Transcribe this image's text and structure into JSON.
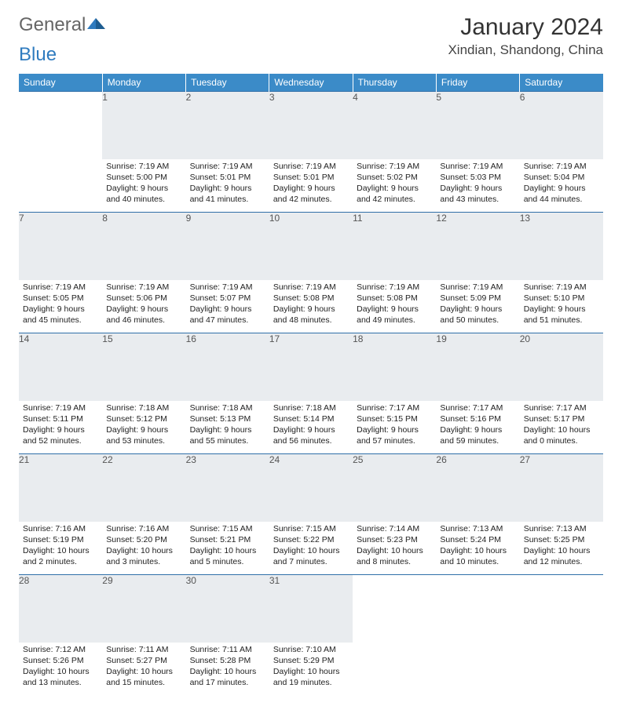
{
  "brand": {
    "part1": "General",
    "part2": "Blue"
  },
  "title": "January 2024",
  "location": "Xindian, Shandong, China",
  "colors": {
    "header_bg": "#3b8bc8",
    "header_fg": "#ffffff",
    "daynum_bg": "#e9ecef",
    "rule": "#2f6fa8",
    "title_fg": "#333333",
    "logo_gray": "#666666",
    "logo_blue": "#2f7bbf",
    "body_fg": "#222222"
  },
  "typography": {
    "title_fontsize": 30,
    "location_fontsize": 17,
    "header_fontsize": 12,
    "cell_fontsize": 10.5
  },
  "day_headers": [
    "Sunday",
    "Monday",
    "Tuesday",
    "Wednesday",
    "Thursday",
    "Friday",
    "Saturday"
  ],
  "weeks": [
    {
      "nums": [
        "",
        "1",
        "2",
        "3",
        "4",
        "5",
        "6"
      ],
      "cells": [
        {
          "empty": true
        },
        {
          "sunrise": "Sunrise: 7:19 AM",
          "sunset": "Sunset: 5:00 PM",
          "day1": "Daylight: 9 hours",
          "day2": "and 40 minutes."
        },
        {
          "sunrise": "Sunrise: 7:19 AM",
          "sunset": "Sunset: 5:01 PM",
          "day1": "Daylight: 9 hours",
          "day2": "and 41 minutes."
        },
        {
          "sunrise": "Sunrise: 7:19 AM",
          "sunset": "Sunset: 5:01 PM",
          "day1": "Daylight: 9 hours",
          "day2": "and 42 minutes."
        },
        {
          "sunrise": "Sunrise: 7:19 AM",
          "sunset": "Sunset: 5:02 PM",
          "day1": "Daylight: 9 hours",
          "day2": "and 42 minutes."
        },
        {
          "sunrise": "Sunrise: 7:19 AM",
          "sunset": "Sunset: 5:03 PM",
          "day1": "Daylight: 9 hours",
          "day2": "and 43 minutes."
        },
        {
          "sunrise": "Sunrise: 7:19 AM",
          "sunset": "Sunset: 5:04 PM",
          "day1": "Daylight: 9 hours",
          "day2": "and 44 minutes."
        }
      ]
    },
    {
      "nums": [
        "7",
        "8",
        "9",
        "10",
        "11",
        "12",
        "13"
      ],
      "cells": [
        {
          "sunrise": "Sunrise: 7:19 AM",
          "sunset": "Sunset: 5:05 PM",
          "day1": "Daylight: 9 hours",
          "day2": "and 45 minutes."
        },
        {
          "sunrise": "Sunrise: 7:19 AM",
          "sunset": "Sunset: 5:06 PM",
          "day1": "Daylight: 9 hours",
          "day2": "and 46 minutes."
        },
        {
          "sunrise": "Sunrise: 7:19 AM",
          "sunset": "Sunset: 5:07 PM",
          "day1": "Daylight: 9 hours",
          "day2": "and 47 minutes."
        },
        {
          "sunrise": "Sunrise: 7:19 AM",
          "sunset": "Sunset: 5:08 PM",
          "day1": "Daylight: 9 hours",
          "day2": "and 48 minutes."
        },
        {
          "sunrise": "Sunrise: 7:19 AM",
          "sunset": "Sunset: 5:08 PM",
          "day1": "Daylight: 9 hours",
          "day2": "and 49 minutes."
        },
        {
          "sunrise": "Sunrise: 7:19 AM",
          "sunset": "Sunset: 5:09 PM",
          "day1": "Daylight: 9 hours",
          "day2": "and 50 minutes."
        },
        {
          "sunrise": "Sunrise: 7:19 AM",
          "sunset": "Sunset: 5:10 PM",
          "day1": "Daylight: 9 hours",
          "day2": "and 51 minutes."
        }
      ]
    },
    {
      "nums": [
        "14",
        "15",
        "16",
        "17",
        "18",
        "19",
        "20"
      ],
      "cells": [
        {
          "sunrise": "Sunrise: 7:19 AM",
          "sunset": "Sunset: 5:11 PM",
          "day1": "Daylight: 9 hours",
          "day2": "and 52 minutes."
        },
        {
          "sunrise": "Sunrise: 7:18 AM",
          "sunset": "Sunset: 5:12 PM",
          "day1": "Daylight: 9 hours",
          "day2": "and 53 minutes."
        },
        {
          "sunrise": "Sunrise: 7:18 AM",
          "sunset": "Sunset: 5:13 PM",
          "day1": "Daylight: 9 hours",
          "day2": "and 55 minutes."
        },
        {
          "sunrise": "Sunrise: 7:18 AM",
          "sunset": "Sunset: 5:14 PM",
          "day1": "Daylight: 9 hours",
          "day2": "and 56 minutes."
        },
        {
          "sunrise": "Sunrise: 7:17 AM",
          "sunset": "Sunset: 5:15 PM",
          "day1": "Daylight: 9 hours",
          "day2": "and 57 minutes."
        },
        {
          "sunrise": "Sunrise: 7:17 AM",
          "sunset": "Sunset: 5:16 PM",
          "day1": "Daylight: 9 hours",
          "day2": "and 59 minutes."
        },
        {
          "sunrise": "Sunrise: 7:17 AM",
          "sunset": "Sunset: 5:17 PM",
          "day1": "Daylight: 10 hours",
          "day2": "and 0 minutes."
        }
      ]
    },
    {
      "nums": [
        "21",
        "22",
        "23",
        "24",
        "25",
        "26",
        "27"
      ],
      "cells": [
        {
          "sunrise": "Sunrise: 7:16 AM",
          "sunset": "Sunset: 5:19 PM",
          "day1": "Daylight: 10 hours",
          "day2": "and 2 minutes."
        },
        {
          "sunrise": "Sunrise: 7:16 AM",
          "sunset": "Sunset: 5:20 PM",
          "day1": "Daylight: 10 hours",
          "day2": "and 3 minutes."
        },
        {
          "sunrise": "Sunrise: 7:15 AM",
          "sunset": "Sunset: 5:21 PM",
          "day1": "Daylight: 10 hours",
          "day2": "and 5 minutes."
        },
        {
          "sunrise": "Sunrise: 7:15 AM",
          "sunset": "Sunset: 5:22 PM",
          "day1": "Daylight: 10 hours",
          "day2": "and 7 minutes."
        },
        {
          "sunrise": "Sunrise: 7:14 AM",
          "sunset": "Sunset: 5:23 PM",
          "day1": "Daylight: 10 hours",
          "day2": "and 8 minutes."
        },
        {
          "sunrise": "Sunrise: 7:13 AM",
          "sunset": "Sunset: 5:24 PM",
          "day1": "Daylight: 10 hours",
          "day2": "and 10 minutes."
        },
        {
          "sunrise": "Sunrise: 7:13 AM",
          "sunset": "Sunset: 5:25 PM",
          "day1": "Daylight: 10 hours",
          "day2": "and 12 minutes."
        }
      ]
    },
    {
      "nums": [
        "28",
        "29",
        "30",
        "31",
        "",
        "",
        ""
      ],
      "cells": [
        {
          "sunrise": "Sunrise: 7:12 AM",
          "sunset": "Sunset: 5:26 PM",
          "day1": "Daylight: 10 hours",
          "day2": "and 13 minutes."
        },
        {
          "sunrise": "Sunrise: 7:11 AM",
          "sunset": "Sunset: 5:27 PM",
          "day1": "Daylight: 10 hours",
          "day2": "and 15 minutes."
        },
        {
          "sunrise": "Sunrise: 7:11 AM",
          "sunset": "Sunset: 5:28 PM",
          "day1": "Daylight: 10 hours",
          "day2": "and 17 minutes."
        },
        {
          "sunrise": "Sunrise: 7:10 AM",
          "sunset": "Sunset: 5:29 PM",
          "day1": "Daylight: 10 hours",
          "day2": "and 19 minutes."
        },
        {
          "empty": true
        },
        {
          "empty": true
        },
        {
          "empty": true
        }
      ]
    }
  ]
}
